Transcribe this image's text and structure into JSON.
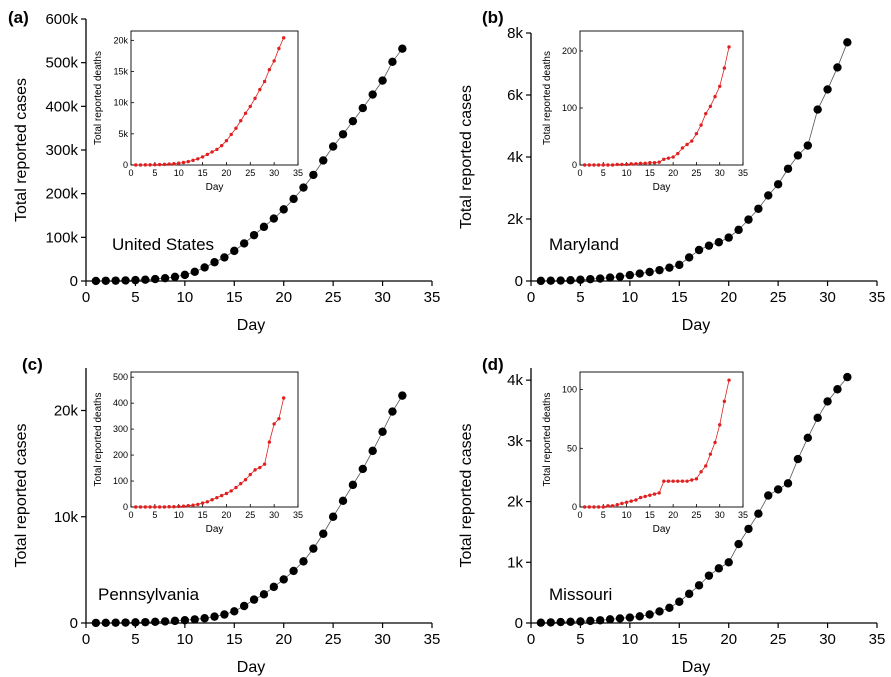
{
  "figure": {
    "panels": [
      {
        "label": "(a)",
        "region": "United States",
        "chart_data": {
          "type": "scatter",
          "xlabel": "Day",
          "ylabel": "Total reported cases",
          "xlim": [
            0,
            35
          ],
          "ylim": [
            0,
            600000
          ],
          "xticks": [
            0,
            5,
            10,
            15,
            20,
            25,
            30,
            35
          ],
          "xtick_labels": [
            "0",
            "5",
            "10",
            "15",
            "20",
            "25",
            "30",
            "35"
          ],
          "yticks": [
            0,
            100000,
            200000,
            300000,
            400000,
            500000,
            600000
          ],
          "ytick_labels": [
            "0",
            "100k",
            "200k",
            "300k",
            "400k",
            "500k",
            "600k"
          ],
          "x": [
            1,
            2,
            3,
            4,
            5,
            6,
            7,
            8,
            9,
            10,
            11,
            12,
            13,
            14,
            15,
            16,
            17,
            18,
            19,
            20,
            21,
            22,
            23,
            24,
            25,
            26,
            27,
            28,
            29,
            30,
            31,
            32
          ],
          "series": [
            {
              "values": [
                100,
                500,
                800,
                1300,
                2000,
                3000,
                4500,
                6500,
                9500,
                14000,
                21000,
                31000,
                43000,
                54000,
                69000,
                86000,
                105000,
                124000,
                143000,
                164000,
                188000,
                214000,
                243000,
                276000,
                308000,
                336000,
                366000,
                396000,
                427000,
                459000,
                502000,
                532000
              ],
              "color": "#000000"
            }
          ],
          "inset": {
            "type": "line",
            "xlabel": "Day",
            "ylabel": "Total reported deaths",
            "xlim": [
              0,
              35
            ],
            "ylim": [
              0,
              21500
            ],
            "xticks": [
              0,
              5,
              10,
              15,
              20,
              25,
              30,
              35
            ],
            "xtick_labels": [
              "0",
              "5",
              "10",
              "15",
              "20",
              "25",
              "30",
              "35"
            ],
            "yticks": [
              0,
              5000,
              10000,
              15000,
              20000
            ],
            "ytick_labels": [
              "0",
              "5k",
              "10k",
              "15k",
              "20k"
            ],
            "x": [
              1,
              2,
              3,
              4,
              5,
              6,
              7,
              8,
              9,
              10,
              11,
              12,
              13,
              14,
              15,
              16,
              17,
              18,
              19,
              20,
              21,
              22,
              23,
              24,
              25,
              26,
              27,
              28,
              29,
              30,
              31,
              32
            ],
            "values": [
              5,
              10,
              20,
              30,
              50,
              70,
              100,
              150,
              200,
              280,
              400,
              550,
              750,
              1000,
              1300,
              1700,
              2100,
              2500,
              3100,
              3900,
              4900,
              5900,
              7100,
              8300,
              9400,
              10700,
              12100,
              13400,
              15300,
              16700,
              18700,
              20400
            ],
            "color": "#e02020"
          }
        }
      },
      {
        "label": "(b)",
        "region": "Maryland",
        "chart_data": {
          "type": "scatter",
          "xlabel": "Day",
          "ylabel": "Total reported cases",
          "xlim": [
            0,
            35
          ],
          "ylim": [
            0,
            8000
          ],
          "xticks": [
            0,
            5,
            10,
            15,
            20,
            25,
            30,
            35
          ],
          "xtick_labels": [
            "0",
            "5",
            "10",
            "15",
            "20",
            "25",
            "30",
            "35"
          ],
          "yticks": [
            0,
            2000,
            4000,
            6000,
            8000
          ],
          "ytick_labels": [
            "0",
            "2k",
            "4k",
            "6k",
            "8k"
          ],
          "x": [
            1,
            2,
            3,
            4,
            5,
            6,
            7,
            8,
            9,
            10,
            11,
            12,
            13,
            14,
            15,
            16,
            17,
            18,
            19,
            20,
            21,
            22,
            23,
            24,
            25,
            26,
            27,
            28,
            29,
            30,
            31,
            32
          ],
          "series": [
            {
              "values": [
                5,
                10,
                15,
                25,
                40,
                60,
                80,
                110,
                140,
                190,
                240,
                290,
                350,
                430,
                520,
                760,
                1000,
                1140,
                1250,
                1400,
                1650,
                1980,
                2330,
                2760,
                3120,
                3620,
                4050,
                4370,
                5530,
                6180,
                6890,
                7700
              ],
              "color": "#000000"
            }
          ],
          "inset": {
            "type": "line",
            "xlabel": "Day",
            "ylabel": "Total reported deaths",
            "xlim": [
              0,
              35
            ],
            "ylim": [
              0,
              235
            ],
            "xticks": [
              0,
              5,
              10,
              15,
              20,
              25,
              30,
              35
            ],
            "xtick_labels": [
              "0",
              "5",
              "10",
              "15",
              "20",
              "25",
              "30",
              "35"
            ],
            "yticks": [
              0,
              100,
              200
            ],
            "ytick_labels": [
              "0",
              "100",
              "200"
            ],
            "x": [
              1,
              2,
              3,
              4,
              5,
              6,
              7,
              8,
              9,
              10,
              11,
              12,
              13,
              14,
              15,
              16,
              17,
              18,
              19,
              20,
              21,
              22,
              23,
              24,
              25,
              26,
              27,
              28,
              29,
              30,
              31,
              32
            ],
            "values": [
              0,
              0,
              0,
              0,
              0,
              0,
              0,
              1,
              1,
              1,
              2,
              2,
              3,
              3,
              4,
              4,
              5,
              10,
              12,
              14,
              20,
              30,
              36,
              42,
              55,
              70,
              90,
              103,
              120,
              138,
              170,
              207
            ],
            "color": "#e02020"
          }
        }
      },
      {
        "label": "(c)",
        "region": "Pennsylvania",
        "chart_data": {
          "type": "scatter",
          "xlabel": "Day",
          "ylabel": "Total reported cases",
          "xlim": [
            0,
            35
          ],
          "ylim": [
            0,
            24000
          ],
          "xticks": [
            0,
            5,
            10,
            15,
            20,
            25,
            30,
            35
          ],
          "xtick_labels": [
            "0",
            "5",
            "10",
            "15",
            "20",
            "25",
            "30",
            "35"
          ],
          "yticks": [
            0,
            10000,
            20000
          ],
          "ytick_labels": [
            "0",
            "10k",
            "20k"
          ],
          "x": [
            1,
            2,
            3,
            4,
            5,
            6,
            7,
            8,
            9,
            10,
            11,
            12,
            13,
            14,
            15,
            16,
            17,
            18,
            19,
            20,
            21,
            22,
            23,
            24,
            25,
            26,
            27,
            28,
            29,
            30,
            31,
            32
          ],
          "series": [
            {
              "values": [
                10,
                20,
                30,
                45,
                60,
                80,
                110,
                150,
                200,
                260,
                340,
                450,
                600,
                800,
                1100,
                1600,
                2200,
                2700,
                3400,
                4100,
                4900,
                5800,
                7000,
                8400,
                10000,
                11500,
                13000,
                14500,
                16200,
                18000,
                19900,
                21400
              ],
              "color": "#000000"
            }
          ],
          "inset": {
            "type": "line",
            "xlabel": "Day",
            "ylabel": "Total reported deaths",
            "xlim": [
              0,
              35
            ],
            "ylim": [
              0,
              520
            ],
            "xticks": [
              0,
              5,
              10,
              15,
              20,
              25,
              30,
              35
            ],
            "xtick_labels": [
              "0",
              "5",
              "10",
              "15",
              "20",
              "25",
              "30",
              "35"
            ],
            "yticks": [
              0,
              100,
              200,
              300,
              400,
              500
            ],
            "ytick_labels": [
              "0",
              "100",
              "200",
              "300",
              "400",
              "500"
            ],
            "x": [
              1,
              2,
              3,
              4,
              5,
              6,
              7,
              8,
              9,
              10,
              11,
              12,
              13,
              14,
              15,
              16,
              17,
              18,
              19,
              20,
              21,
              22,
              23,
              24,
              25,
              26,
              27,
              28,
              29,
              30,
              31,
              32
            ],
            "values": [
              0,
              0,
              0,
              0,
              0,
              0,
              0,
              1,
              1,
              2,
              3,
              5,
              7,
              10,
              15,
              20,
              28,
              36,
              44,
              52,
              62,
              75,
              90,
              105,
              125,
              143,
              152,
              165,
              250,
              320,
              340,
              420
            ],
            "color": "#e02020"
          }
        }
      },
      {
        "label": "(d)",
        "region": "Missouri",
        "chart_data": {
          "type": "scatter",
          "xlabel": "Day",
          "ylabel": "Total reported cases",
          "xlim": [
            0,
            35
          ],
          "ylim": [
            0,
            4200
          ],
          "xticks": [
            0,
            5,
            10,
            15,
            20,
            25,
            30,
            35
          ],
          "xtick_labels": [
            "0",
            "5",
            "10",
            "15",
            "20",
            "25",
            "30",
            "35"
          ],
          "yticks": [
            0,
            1000,
            2000,
            3000,
            4000
          ],
          "ytick_labels": [
            "0",
            "1k",
            "2k",
            "3k",
            "4k"
          ],
          "x": [
            1,
            2,
            3,
            4,
            5,
            6,
            7,
            8,
            9,
            10,
            11,
            12,
            13,
            14,
            15,
            16,
            17,
            18,
            19,
            20,
            21,
            22,
            23,
            24,
            25,
            26,
            27,
            28,
            29,
            30,
            31,
            32
          ],
          "series": [
            {
              "values": [
                5,
                10,
                15,
                20,
                25,
                35,
                45,
                60,
                75,
                90,
                110,
                140,
                190,
                250,
                350,
                480,
                620,
                780,
                900,
                1000,
                1300,
                1550,
                1800,
                2100,
                2200,
                2300,
                2700,
                3050,
                3380,
                3650,
                3850,
                4050
              ],
              "color": "#000000"
            }
          ],
          "inset": {
            "type": "line",
            "xlabel": "Day",
            "ylabel": "Total reported deaths",
            "xlim": [
              0,
              35
            ],
            "ylim": [
              0,
              115
            ],
            "xticks": [
              0,
              5,
              10,
              15,
              20,
              25,
              30,
              35
            ],
            "xtick_labels": [
              "0",
              "5",
              "10",
              "15",
              "20",
              "25",
              "30",
              "35"
            ],
            "yticks": [
              0,
              50,
              100
            ],
            "ytick_labels": [
              "0",
              "50",
              "100"
            ],
            "x": [
              1,
              2,
              3,
              4,
              5,
              6,
              7,
              8,
              9,
              10,
              11,
              12,
              13,
              14,
              15,
              16,
              17,
              18,
              19,
              20,
              21,
              22,
              23,
              24,
              25,
              26,
              27,
              28,
              29,
              30,
              31,
              32
            ],
            "values": [
              0,
              0,
              0,
              0,
              0,
              1,
              1,
              2,
              3,
              4,
              5,
              6,
              8,
              9,
              10,
              11,
              12,
              22,
              22,
              22,
              22,
              22,
              22,
              23,
              24,
              30,
              35,
              45,
              55,
              70,
              90,
              108
            ],
            "color": "#e02020"
          }
        }
      }
    ]
  }
}
